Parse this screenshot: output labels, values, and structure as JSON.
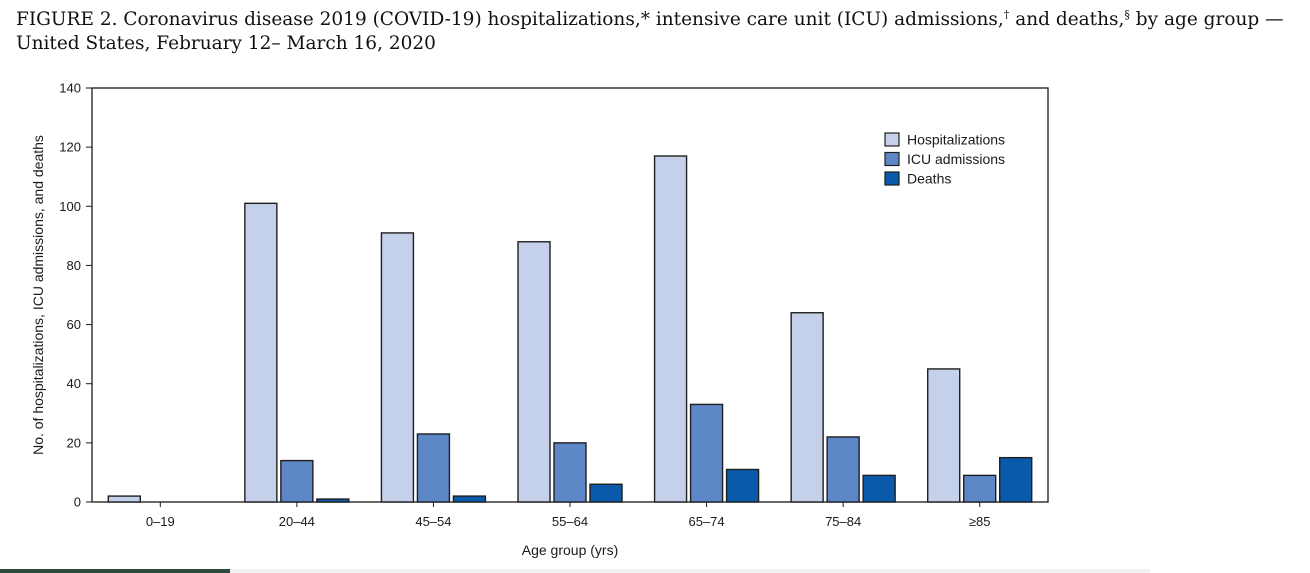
{
  "figure": {
    "title_main": "FIGURE 2. Coronavirus disease 2019 (COVID-19) hospitalizations,* intensive care unit (ICU) admissions,",
    "dagger": "†",
    "title_and_deaths": " and deaths,",
    "section": "§",
    "title_end": " by age group — United States, February 12– March 16, 2020"
  },
  "chart_data": {
    "type": "bar",
    "xlabel": "Age group (yrs)",
    "ylabel": "No. of hospitalizations, ICU admissions, and deaths",
    "ylim": [
      0,
      140
    ],
    "yticks": [
      0,
      20,
      40,
      60,
      80,
      100,
      120,
      140
    ],
    "categories": [
      "0–19",
      "20–44",
      "45–54",
      "55–64",
      "65–74",
      "75–84",
      "≥85"
    ],
    "series": [
      {
        "name": "Hospitalizations",
        "color": "#c5d0ea",
        "values": [
          2,
          101,
          91,
          88,
          117,
          64,
          45
        ]
      },
      {
        "name": "ICU admissions",
        "color": "#5e87c8",
        "values": [
          0,
          14,
          23,
          20,
          33,
          22,
          9
        ]
      },
      {
        "name": "Deaths",
        "color": "#0a5aab",
        "values": [
          0,
          1,
          2,
          6,
          11,
          9,
          15
        ]
      }
    ],
    "grid": false,
    "legend_position": "top-right"
  }
}
